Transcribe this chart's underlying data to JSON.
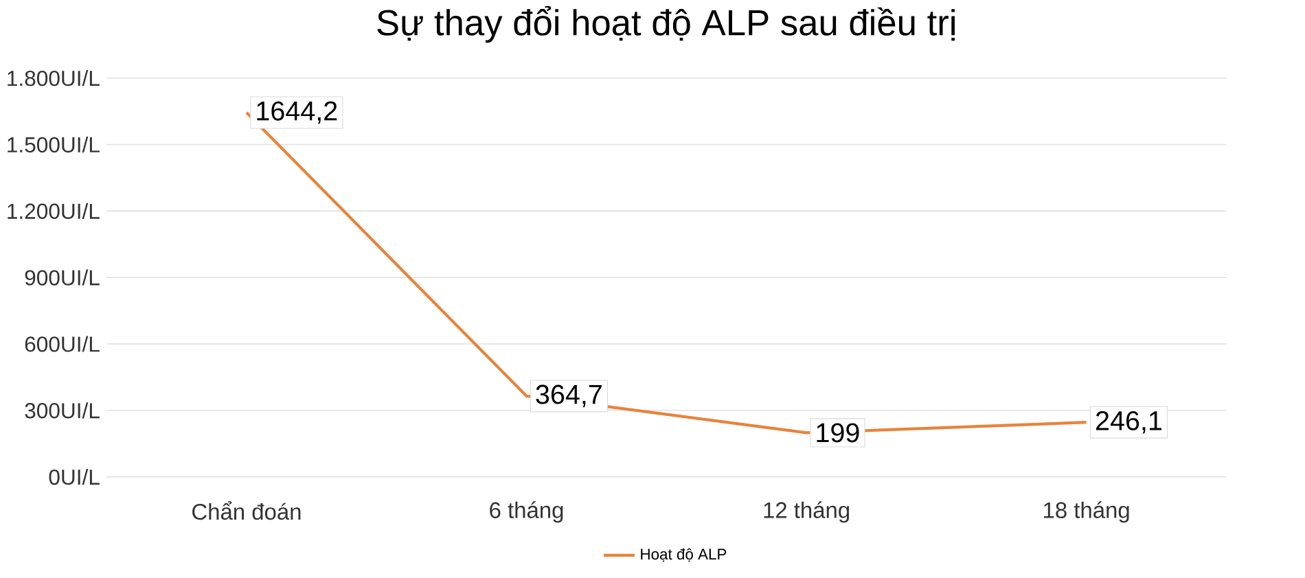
{
  "chart_data": {
    "type": "line",
    "title": "Sự thay đổi hoạt độ ALP sau điều trị",
    "categories": [
      "Chẩn đoán",
      "6 tháng",
      "12 tháng",
      "18 tháng"
    ],
    "series": [
      {
        "name": "Hoạt độ ALP",
        "color": "#e8833a",
        "values": [
          1644.2,
          364.7,
          199,
          246.1
        ],
        "value_labels": [
          "1644,2",
          "364,7",
          "199",
          "246,1"
        ]
      }
    ],
    "ylim": [
      0,
      1800
    ],
    "yticks": [
      {
        "value": 0,
        "label": "0UI/L"
      },
      {
        "value": 300,
        "label": "300UI/L"
      },
      {
        "value": 600,
        "label": "600UI/L"
      },
      {
        "value": 900,
        "label": "900UI/L"
      },
      {
        "value": 1200,
        "label": "1.200UI/L"
      },
      {
        "value": 1500,
        "label": "1.500UI/L"
      },
      {
        "value": 1800,
        "label": "1.800UI/L"
      }
    ],
    "grid": "y",
    "legend": "bottom",
    "marker": "none",
    "line_style": "solid"
  }
}
